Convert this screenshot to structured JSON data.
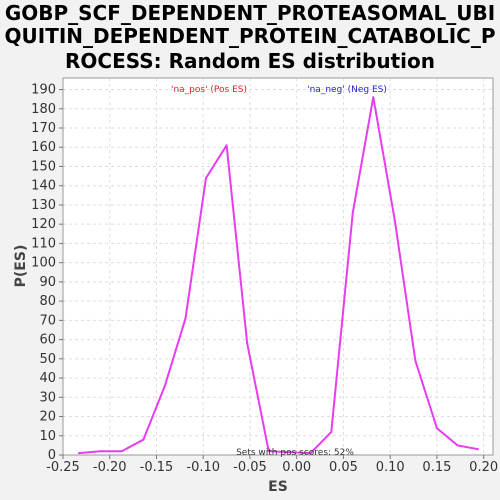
{
  "chart_data": {
    "type": "line",
    "title_lines": [
      "GOBP_SCF_DEPENDENT_PROTEASOMAL_UBI",
      "QUITIN_DEPENDENT_PROTEIN_CATABOLIC_P",
      "ROCESS: Random ES distribution"
    ],
    "xlabel": "ES",
    "ylabel": "P(ES)",
    "xlim": [
      -0.25,
      0.21
    ],
    "ylim": [
      0,
      196
    ],
    "xticks": [
      -0.25,
      -0.2,
      -0.15,
      -0.1,
      -0.05,
      0.0,
      0.05,
      0.1,
      0.15,
      0.2
    ],
    "xtick_labels": [
      "-0.25",
      "-0.20",
      "-0.15",
      "-0.10",
      "-0.05",
      "0.00",
      "0.05",
      "0.10",
      "0.15",
      "0.20"
    ],
    "yticks": [
      0,
      10,
      20,
      30,
      40,
      50,
      60,
      70,
      80,
      90,
      100,
      110,
      120,
      130,
      140,
      150,
      160,
      170,
      180,
      190
    ],
    "grid": true,
    "legend": [
      "'na_pos' (Pos ES)",
      "'na_neg' (Neg ES)"
    ],
    "annotation": "Sets with pos scores: 52%",
    "colors": {
      "line": "#e83cf0",
      "legend_pos": "#d62728",
      "legend_neg": "#2222cc",
      "plot_bg": "#ffffff",
      "page_bg": "#f2f2f2"
    },
    "series": [
      {
        "x": [
          -0.233,
          -0.21,
          -0.187,
          -0.164,
          -0.141,
          -0.119,
          -0.097,
          -0.075,
          -0.053,
          -0.03,
          0.015,
          0.037,
          0.06,
          0.082,
          0.105,
          0.127,
          0.15,
          0.172,
          0.194
        ],
        "y": [
          1,
          2,
          2,
          8,
          36,
          71,
          144,
          161,
          58,
          2,
          1,
          12,
          126,
          186,
          122,
          49,
          14,
          5,
          3
        ]
      }
    ]
  }
}
